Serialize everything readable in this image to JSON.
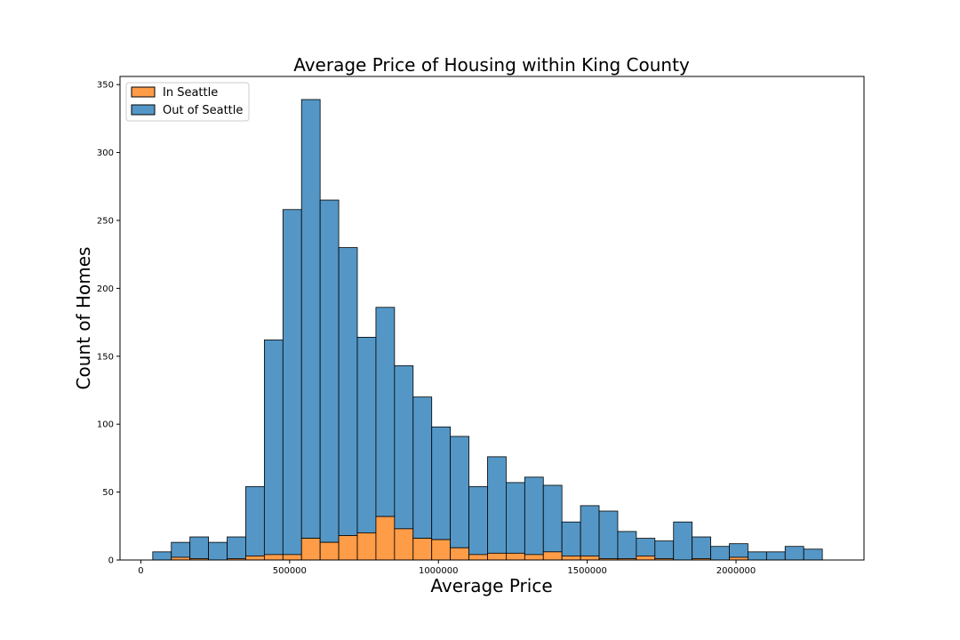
{
  "chart_data": {
    "type": "bar",
    "title": "Average Price of Housing within King County",
    "xlabel": "Average Price",
    "ylabel": "Count of Homes",
    "xlim": [
      -70000,
      2430000
    ],
    "ylim": [
      0,
      356
    ],
    "xticks": [
      0,
      500000,
      1000000,
      1500000,
      2000000
    ],
    "yticks": [
      0,
      50,
      100,
      150,
      200,
      250,
      300,
      350
    ],
    "bin_width": 62500,
    "bin_edges_start": 40000,
    "stacked": true,
    "legend": {
      "position": "top-left"
    },
    "colors": {
      "in_seattle": "#fe9c48",
      "out_of_seattle": "#5497c6",
      "edge": "#000000"
    },
    "series": [
      {
        "name": "In Seattle",
        "values": [
          0,
          2,
          1,
          0,
          1,
          3,
          4,
          4,
          16,
          13,
          18,
          20,
          32,
          23,
          16,
          15,
          9,
          4,
          5,
          5,
          4,
          6,
          3,
          3,
          1,
          1,
          3,
          1,
          0,
          1,
          0,
          2,
          0,
          0,
          0,
          0
        ]
      },
      {
        "name": "Out of Seattle",
        "values": [
          6,
          11,
          16,
          13,
          16,
          51,
          158,
          254,
          323,
          252,
          212,
          144,
          154,
          120,
          104,
          83,
          82,
          50,
          71,
          52,
          57,
          49,
          25,
          37,
          35,
          20,
          13,
          13,
          28,
          16,
          10,
          10,
          6,
          6,
          10,
          8
        ]
      }
    ]
  }
}
